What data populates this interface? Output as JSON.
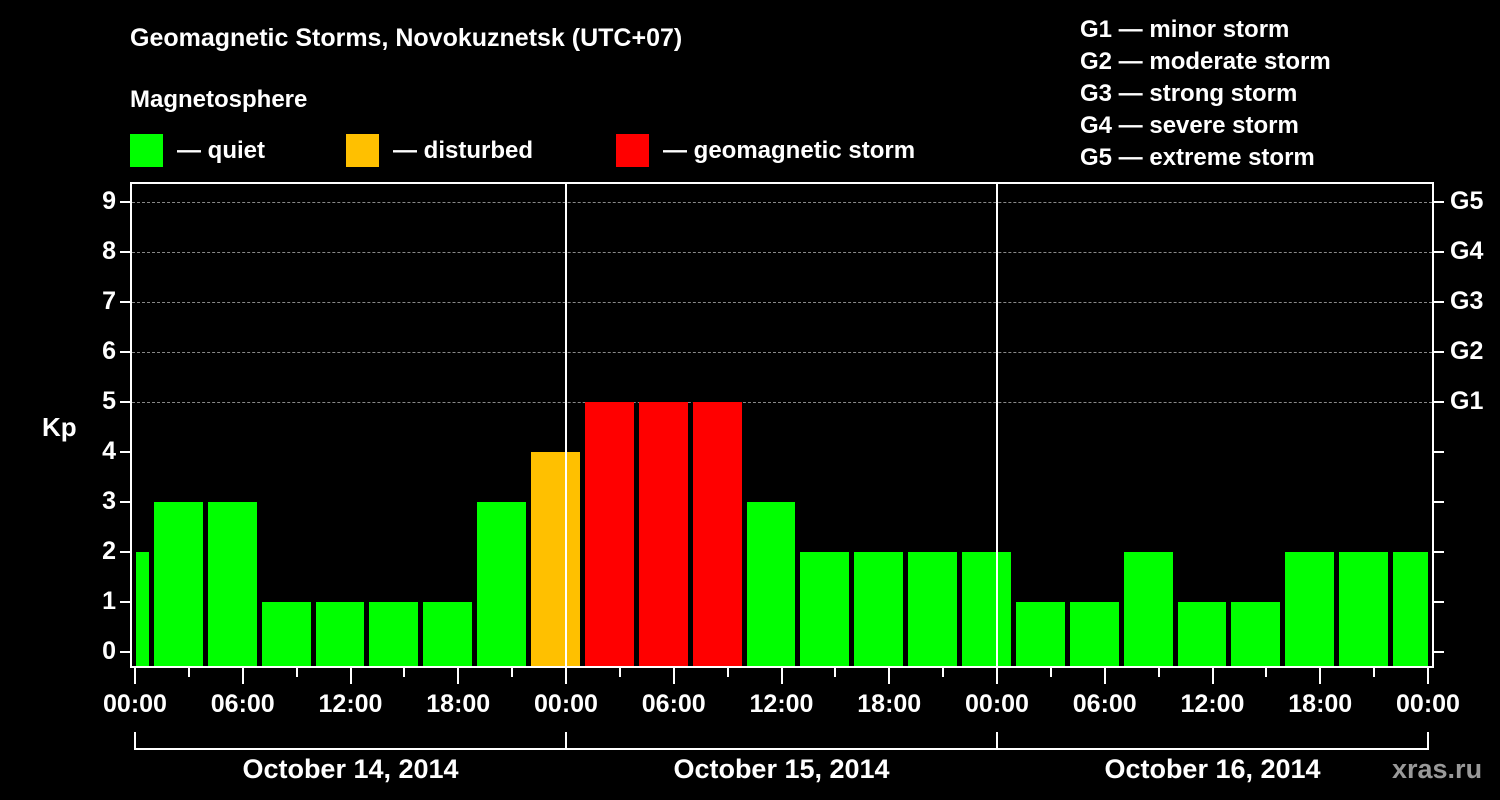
{
  "header": {
    "title": "Geomagnetic Storms, Novokuznetsk (UTC+07)",
    "subtitle": "Magnetosphere"
  },
  "legend": [
    {
      "label": "— quiet",
      "color": "#00ff00"
    },
    {
      "label": "— disturbed",
      "color": "#ffc000"
    },
    {
      "label": "— geomagnetic storm",
      "color": "#ff0000"
    }
  ],
  "g_scale_legend": [
    "G1 — minor storm",
    "G2 — moderate storm",
    "G3 — strong storm",
    "G4 — severe storm",
    "G5 — extreme storm"
  ],
  "credit": "xras.ru",
  "chart_data": {
    "type": "bar",
    "title": "Geomagnetic Storms, Novokuznetsk (UTC+07)",
    "xlabel": "",
    "ylabel": "Kp",
    "ylim": [
      0,
      9
    ],
    "grid": "dashed horizontal lines at Kp 5-9",
    "yticks": [
      0,
      1,
      2,
      3,
      4,
      5,
      6,
      7,
      8,
      9
    ],
    "right_axis_labels": [
      {
        "kp": 5,
        "label": "G1"
      },
      {
        "kp": 6,
        "label": "G2"
      },
      {
        "kp": 7,
        "label": "G3"
      },
      {
        "kp": 8,
        "label": "G4"
      },
      {
        "kp": 9,
        "label": "G5"
      }
    ],
    "xtick_labels": [
      "00:00",
      "06:00",
      "12:00",
      "18:00",
      "00:00",
      "06:00",
      "12:00",
      "18:00",
      "00:00",
      "06:00",
      "12:00",
      "18:00",
      "00:00"
    ],
    "dates": [
      "October 14, 2014",
      "October 15, 2014",
      "October 16, 2014"
    ],
    "bin_hours": 3,
    "bins": [
      {
        "start_h": -2,
        "kp": 2,
        "status": "quiet"
      },
      {
        "start_h": 1,
        "kp": 3,
        "status": "quiet"
      },
      {
        "start_h": 4,
        "kp": 3,
        "status": "quiet"
      },
      {
        "start_h": 7,
        "kp": 1,
        "status": "quiet"
      },
      {
        "start_h": 10,
        "kp": 1,
        "status": "quiet"
      },
      {
        "start_h": 13,
        "kp": 1,
        "status": "quiet"
      },
      {
        "start_h": 16,
        "kp": 1,
        "status": "quiet"
      },
      {
        "start_h": 19,
        "kp": 3,
        "status": "quiet"
      },
      {
        "start_h": 22,
        "kp": 4,
        "status": "disturbed"
      },
      {
        "start_h": 25,
        "kp": 5,
        "status": "storm"
      },
      {
        "start_h": 28,
        "kp": 5,
        "status": "storm"
      },
      {
        "start_h": 31,
        "kp": 5,
        "status": "storm"
      },
      {
        "start_h": 34,
        "kp": 3,
        "status": "quiet"
      },
      {
        "start_h": 37,
        "kp": 2,
        "status": "quiet"
      },
      {
        "start_h": 40,
        "kp": 2,
        "status": "quiet"
      },
      {
        "start_h": 43,
        "kp": 2,
        "status": "quiet"
      },
      {
        "start_h": 46,
        "kp": 2,
        "status": "quiet"
      },
      {
        "start_h": 49,
        "kp": 1,
        "status": "quiet"
      },
      {
        "start_h": 52,
        "kp": 1,
        "status": "quiet"
      },
      {
        "start_h": 55,
        "kp": 2,
        "status": "quiet"
      },
      {
        "start_h": 58,
        "kp": 1,
        "status": "quiet"
      },
      {
        "start_h": 61,
        "kp": 1,
        "status": "quiet"
      },
      {
        "start_h": 64,
        "kp": 2,
        "status": "quiet"
      },
      {
        "start_h": 67,
        "kp": 2,
        "status": "quiet"
      },
      {
        "start_h": 70,
        "kp": 2,
        "status": "quiet"
      }
    ],
    "colors": {
      "quiet": "#00ff00",
      "disturbed": "#ffc000",
      "storm": "#ff0000"
    }
  }
}
